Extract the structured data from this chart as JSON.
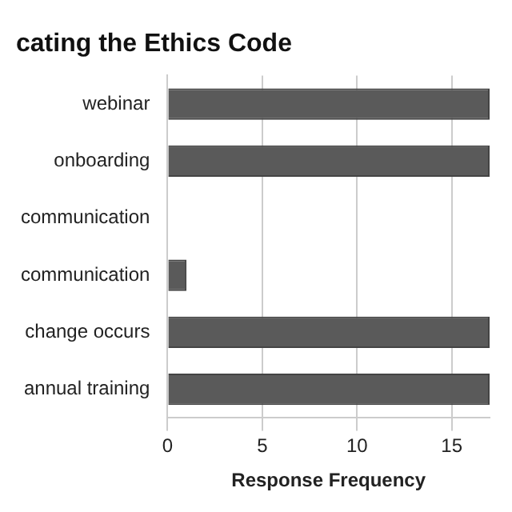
{
  "chart_data": {
    "type": "bar",
    "orientation": "horizontal",
    "title": "cating the Ethics Code",
    "categories": [
      "webinar",
      "onboarding",
      "communication",
      "communication",
      "change occurs",
      "annual training"
    ],
    "values": [
      17,
      17,
      0,
      1,
      17,
      17
    ],
    "color": "#5a5a5a",
    "xlim": [
      0,
      17
    ],
    "xticks": [
      0,
      5,
      10,
      15
    ],
    "xlabel": "Response Frequency",
    "grid": "x",
    "legend": false
  }
}
